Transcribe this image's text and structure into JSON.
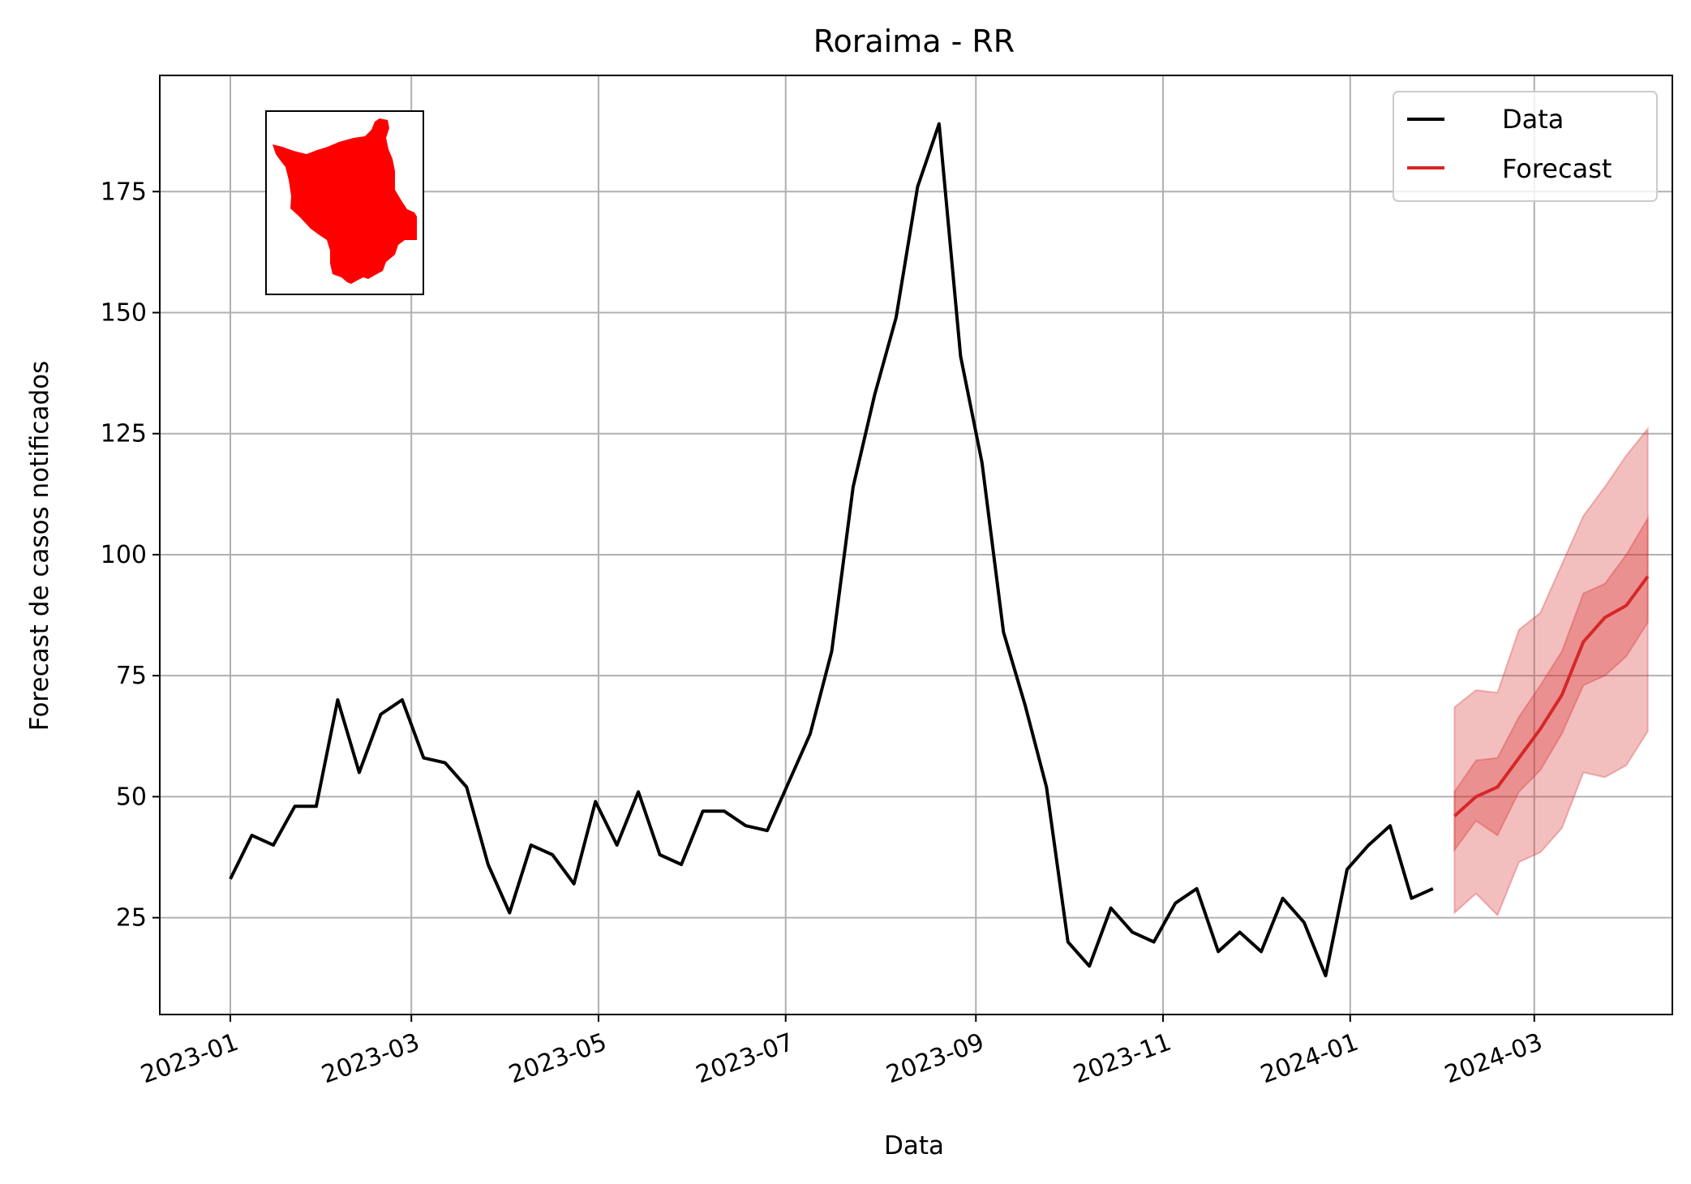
{
  "chart_data": {
    "type": "line",
    "title": "Roraima - RR",
    "xlabel": "Data",
    "ylabel": "Forecast de casos notificados",
    "x_ticks": [
      "2023-01",
      "2023-03",
      "2023-05",
      "2023-07",
      "2023-09",
      "2023-11",
      "2024-01",
      "2024-03"
    ],
    "y_ticks": [
      25,
      50,
      75,
      100,
      125,
      150,
      175
    ],
    "xlim": [
      "2022-12-09",
      "2024-04-15"
    ],
    "ylim": [
      5,
      199
    ],
    "grid": true,
    "legend_position": "top-right",
    "inset_map": "state map of Roraima in red",
    "colors": {
      "data": "#000000",
      "forecast": "#d62728",
      "band": "#d62728",
      "inset_fill": "#ff0000"
    },
    "series": [
      {
        "name": "Data",
        "x": [
          "2023-01-01",
          "2023-01-08",
          "2023-01-15",
          "2023-01-22",
          "2023-01-29",
          "2023-02-05",
          "2023-02-12",
          "2023-02-19",
          "2023-02-26",
          "2023-03-05",
          "2023-03-12",
          "2023-03-19",
          "2023-03-26",
          "2023-04-02",
          "2023-04-09",
          "2023-04-16",
          "2023-04-23",
          "2023-04-30",
          "2023-05-07",
          "2023-05-14",
          "2023-05-21",
          "2023-05-28",
          "2023-06-04",
          "2023-06-11",
          "2023-06-18",
          "2023-06-25",
          "2023-07-02",
          "2023-07-09",
          "2023-07-16",
          "2023-07-23",
          "2023-07-30",
          "2023-08-06",
          "2023-08-13",
          "2023-08-20",
          "2023-08-27",
          "2023-09-03",
          "2023-09-10",
          "2023-09-17",
          "2023-09-24",
          "2023-10-01",
          "2023-10-08",
          "2023-10-15",
          "2023-10-22",
          "2023-10-29",
          "2023-11-05",
          "2023-11-12",
          "2023-11-19",
          "2023-11-26",
          "2023-12-03",
          "2023-12-10",
          "2023-12-17",
          "2023-12-24",
          "2023-12-31",
          "2024-01-07",
          "2024-01-14",
          "2024-01-21",
          "2024-01-28"
        ],
        "values": [
          33,
          42,
          40,
          48,
          48,
          70,
          55,
          67,
          70,
          58,
          57,
          52,
          36,
          26,
          40,
          38,
          32,
          49,
          40,
          51,
          38,
          36,
          47,
          47,
          44,
          43,
          53,
          63,
          80,
          114,
          133,
          149,
          176,
          189,
          141,
          119,
          84,
          69,
          52,
          20,
          15,
          27,
          22,
          20,
          28,
          31,
          18,
          22,
          18,
          29,
          24,
          13,
          35,
          40,
          44,
          29,
          31
        ]
      },
      {
        "name": "Forecast",
        "x": [
          "2024-02-04",
          "2024-02-11",
          "2024-02-18",
          "2024-02-25",
          "2024-03-03",
          "2024-03-10",
          "2024-03-17",
          "2024-03-24",
          "2024-03-31",
          "2024-04-07"
        ],
        "values": [
          46,
          50,
          52,
          58,
          64,
          71,
          82,
          87,
          89.5,
          95.5
        ],
        "inner_lower": [
          39,
          45,
          42,
          51,
          55.5,
          63,
          73,
          75,
          79,
          86
        ],
        "inner_upper": [
          51,
          57.5,
          58,
          66.5,
          73,
          80,
          92,
          94,
          100,
          107.5
        ],
        "outer_lower": [
          26,
          30,
          25.5,
          36.5,
          38.5,
          43.5,
          55,
          54,
          56.5,
          63.5
        ],
        "outer_upper": [
          68.5,
          72,
          71.5,
          84.5,
          88,
          98,
          108,
          114,
          120.5,
          126
        ]
      }
    ]
  }
}
